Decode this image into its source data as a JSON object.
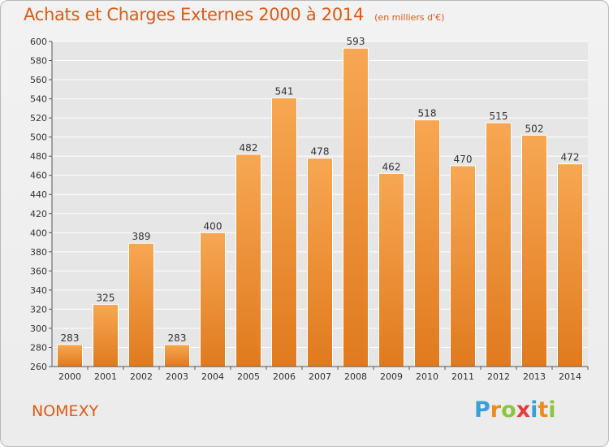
{
  "header": {
    "title": "Achats et Charges Externes 2000 à 2014",
    "subtitle": "(en milliers d'€)"
  },
  "footer": {
    "commune": "NOMEXY",
    "logo_text": "Proxiti",
    "logo_letters": [
      {
        "char": "P",
        "color": "#3aa0dc"
      },
      {
        "char": "r",
        "color": "#f08a1c"
      },
      {
        "char": "o",
        "color": "#8cc63f"
      },
      {
        "char": "x",
        "color": "#e83c3c"
      },
      {
        "char": "i",
        "color": "#3aa0dc"
      },
      {
        "char": "t",
        "color": "#f08a1c"
      },
      {
        "char": "i",
        "color": "#8cc63f"
      }
    ]
  },
  "colors": {
    "bar_top": "#f7a752",
    "bar_bottom": "#e07a1e",
    "accent": "#e05a12",
    "grid": "#ffffff",
    "axis_text": "#333333"
  },
  "chart_data": {
    "type": "bar",
    "categories": [
      "2000",
      "2001",
      "2002",
      "2003",
      "2004",
      "2005",
      "2006",
      "2007",
      "2008",
      "2009",
      "2010",
      "2011",
      "2012",
      "2013",
      "2014"
    ],
    "values": [
      283,
      325,
      389,
      283,
      400,
      482,
      541,
      478,
      593,
      462,
      518,
      470,
      515,
      502,
      472
    ],
    "ylim": [
      260,
      600
    ],
    "yticks": [
      260,
      280,
      300,
      320,
      340,
      360,
      380,
      400,
      420,
      440,
      460,
      480,
      500,
      520,
      540,
      560,
      580,
      600
    ],
    "grid": true,
    "data_labels": true
  }
}
